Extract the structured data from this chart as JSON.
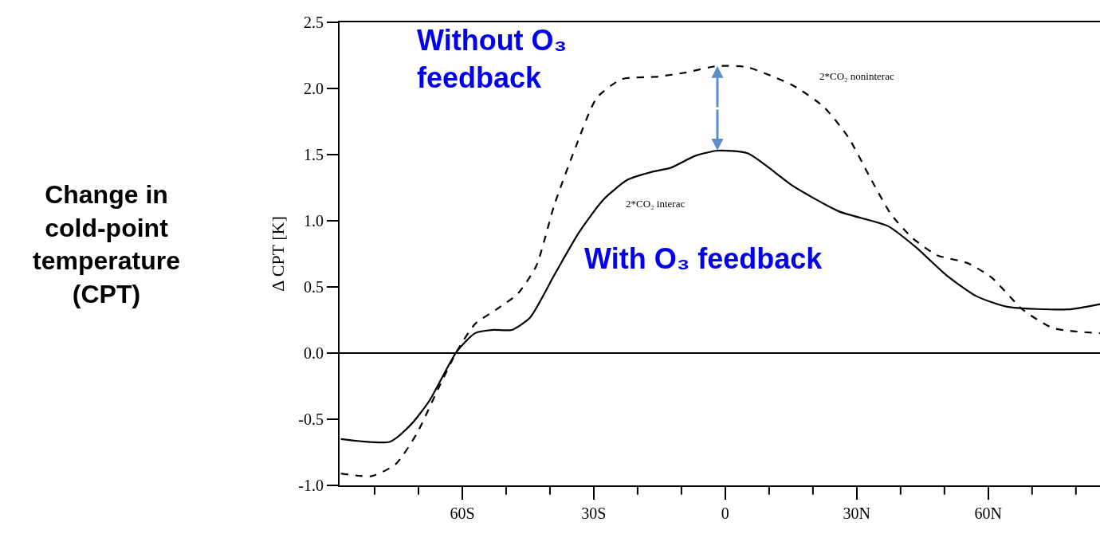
{
  "chart_data": {
    "type": "line",
    "ylabel": "Δ CPT [K]",
    "series": [
      {
        "name": "2*CO₂ interac",
        "color": "#000000",
        "line_style": "solid",
        "x": [
          -87.7,
          -76.5,
          -71.7,
          -67.5,
          -61.3,
          -57.1,
          -52.9,
          -48.7,
          -44.5,
          -39,
          -33.4,
          -27.8,
          -22.3,
          -16.7,
          -12.5,
          -6.9,
          -1.8,
          5.1,
          15.6,
          26,
          37.1,
          43.5,
          50.4,
          57.3,
          64.3,
          78.2,
          85.5
        ],
        "values": [
          -0.65,
          -0.67,
          -0.54,
          -0.36,
          0.01,
          0.15,
          0.175,
          0.175,
          0.27,
          0.59,
          0.91,
          1.16,
          1.31,
          1.37,
          1.4,
          1.49,
          1.53,
          1.51,
          1.26,
          1.07,
          0.96,
          0.8,
          0.59,
          0.43,
          0.35,
          0.33,
          0.37
        ]
      },
      {
        "name": "2*CO₂ noninterac",
        "color": "#000000",
        "line_style": "dashed",
        "x": [
          -87.7,
          -80.7,
          -75.2,
          -70.4,
          -65.5,
          -61.3,
          -57.1,
          -52.2,
          -47.3,
          -43.1,
          -39,
          -34.1,
          -29.3,
          -23.6,
          -15.3,
          -9.1,
          -1.8,
          5.1,
          15.6,
          22.5,
          28.1,
          33,
          37.8,
          42.7,
          48.3,
          55.3,
          60.8,
          67.8,
          74.7,
          85.5
        ],
        "values": [
          -0.91,
          -0.93,
          -0.84,
          -0.61,
          -0.27,
          0.01,
          0.22,
          0.33,
          0.45,
          0.66,
          1.12,
          1.56,
          1.93,
          2.07,
          2.09,
          2.12,
          2.17,
          2.16,
          2.02,
          1.86,
          1.63,
          1.33,
          1.05,
          0.87,
          0.74,
          0.68,
          0.57,
          0.33,
          0.19,
          0.15
        ]
      }
    ],
    "xlim": [
      -88,
      85.5
    ],
    "xticks": [
      {
        "value": -80,
        "label": null
      },
      {
        "value": -70,
        "label": null
      },
      {
        "value": -60,
        "label": "60S"
      },
      {
        "value": -50,
        "label": null
      },
      {
        "value": -40,
        "label": null
      },
      {
        "value": -30,
        "label": "30S"
      },
      {
        "value": -20,
        "label": null
      },
      {
        "value": -10,
        "label": null
      },
      0,
      {
        "value": 10,
        "label": null
      },
      {
        "value": 20,
        "label": null
      },
      {
        "value": 30,
        "label": "30N"
      },
      {
        "value": 40,
        "label": null
      },
      {
        "value": 50,
        "label": null
      },
      {
        "value": 60,
        "label": "60N"
      },
      {
        "value": 70,
        "label": null
      },
      {
        "value": 80,
        "label": null
      }
    ],
    "ylim": [
      -1.0,
      2.5
    ],
    "yticks": [
      {
        "value": -1.0,
        "label": "-1.0"
      },
      {
        "value": -0.5,
        "label": "-0.5"
      },
      {
        "value": 0,
        "label": "0.0"
      },
      {
        "value": 0.5,
        "label": "0.5"
      },
      {
        "value": 1.0,
        "label": "1.0"
      },
      {
        "value": 1.5,
        "label": "1.5"
      },
      {
        "value": 2.0,
        "label": "2.0"
      },
      {
        "value": 2.5,
        "label": "2.5"
      }
    ],
    "ref_lines": [
      {
        "axis": "y",
        "value": 0,
        "color": "#000000"
      }
    ],
    "annotations": [
      "Without O₃\nfeedback",
      "With O₃ feedback",
      "Change in\ncold-point\ntemperature\n(CPT)"
    ],
    "legend": false,
    "marker": "none"
  }
}
